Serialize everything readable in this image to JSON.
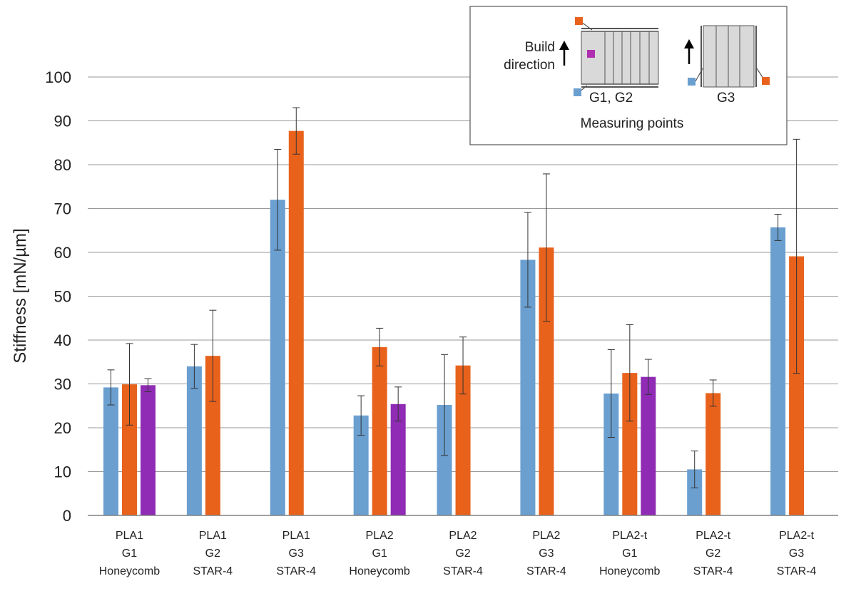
{
  "chart_data": {
    "type": "bar",
    "title": "",
    "xlabel": "",
    "ylabel": "Stiffness [mN/µm]",
    "ylim": [
      0,
      100
    ],
    "yticks": [
      0,
      10,
      20,
      30,
      40,
      50,
      60,
      70,
      80,
      90,
      100
    ],
    "grid": true,
    "categories": [
      [
        "PLA1",
        "G1",
        "Honeycomb"
      ],
      [
        "PLA1",
        "G2",
        "STAR-4"
      ],
      [
        "PLA1",
        "G3",
        "STAR-4"
      ],
      [
        "PLA2",
        "G1",
        "Honeycomb"
      ],
      [
        "PLA2",
        "G2",
        "STAR-4"
      ],
      [
        "PLA2",
        "G3",
        "STAR-4"
      ],
      [
        "PLA2-t",
        "G1",
        "Honeycomb"
      ],
      [
        "PLA2-t",
        "G2",
        "STAR-4"
      ],
      [
        "PLA2-t",
        "G3",
        "STAR-4"
      ]
    ],
    "series": [
      {
        "name": "blue",
        "color": "#6a9fd0",
        "values": [
          29.2,
          34.0,
          72.0,
          22.8,
          25.2,
          58.3,
          27.8,
          10.5,
          65.7
        ],
        "errors": [
          4.0,
          5.0,
          11.5,
          4.5,
          11.5,
          10.8,
          10.0,
          4.2,
          3.0
        ]
      },
      {
        "name": "orange",
        "color": "#e8621c",
        "values": [
          29.9,
          36.4,
          87.7,
          38.4,
          34.2,
          61.1,
          32.5,
          27.9,
          59.1
        ],
        "errors": [
          9.3,
          10.4,
          5.3,
          4.3,
          6.5,
          16.8,
          11.0,
          3.0,
          26.7
        ]
      },
      {
        "name": "purple",
        "color": "#8f2bb4",
        "values": [
          29.7,
          null,
          null,
          25.4,
          null,
          null,
          31.6,
          null,
          null
        ],
        "errors": [
          1.5,
          null,
          null,
          3.9,
          null,
          null,
          4.0,
          null,
          null
        ]
      }
    ],
    "legend": {
      "position": "top-right",
      "build_direction": [
        "Build",
        "direction"
      ],
      "g12_label": "G1, G2",
      "g3_label": "G3",
      "caption": "Measuring points",
      "colors": {
        "blue": "#6a9fd0",
        "orange": "#e8621c",
        "purple": "#b02fb0"
      }
    }
  }
}
